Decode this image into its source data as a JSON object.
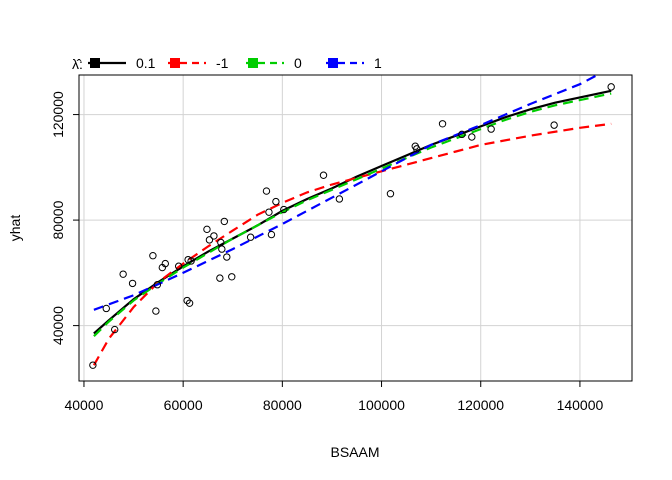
{
  "chart_data": {
    "type": "scatter",
    "xlabel": "BSAAM",
    "ylabel": "yhat",
    "xlim": [
      39000,
      150500
    ],
    "ylim": [
      19000,
      135000
    ],
    "x_ticks": [
      40000,
      60000,
      80000,
      100000,
      120000,
      140000
    ],
    "x_tick_labels": [
      "40000",
      "60000",
      "80000",
      "100000",
      "120000",
      "140000"
    ],
    "y_ticks": [
      40000,
      80000,
      120000
    ],
    "y_tick_labels": [
      "40000",
      "80000",
      "120000"
    ],
    "grid": true,
    "legend_placement": "top-left",
    "legend_title": "λ̂:",
    "points": {
      "x": [
        41800,
        44500,
        46200,
        47900,
        49800,
        53900,
        54500,
        54800,
        55800,
        56400,
        59100,
        60800,
        61000,
        61300,
        61600,
        64800,
        65300,
        66200,
        67400,
        67600,
        67800,
        68300,
        68800,
        69800,
        73600,
        76800,
        77300,
        77800,
        78700,
        80300,
        88300,
        91500,
        101800,
        106800,
        107100,
        112300,
        116200,
        118200,
        122100,
        134800,
        146300
      ],
      "y": [
        25000,
        46500,
        38500,
        59500,
        56000,
        66500,
        45500,
        55500,
        62000,
        63500,
        62500,
        49500,
        65000,
        48500,
        64500,
        76500,
        72500,
        74000,
        58000,
        71500,
        69000,
        79500,
        66000,
        58500,
        73500,
        91000,
        83000,
        74500,
        87000,
        84000,
        97000,
        88000,
        90000,
        108000,
        107000,
        116500,
        112500,
        111500,
        114500,
        116000,
        130500
      ]
    },
    "series": [
      {
        "name": "0.1",
        "color": "#000000",
        "dash": "solid",
        "x": [
          42000,
          45000,
          50000,
          55000,
          60000,
          65000,
          70000,
          75000,
          80000,
          85000,
          90000,
          95000,
          100000,
          105000,
          110000,
          115000,
          120000,
          125000,
          130000,
          135000,
          140000,
          146300
        ],
        "y": [
          37000,
          42000,
          50000,
          56500,
          62500,
          68000,
          73000,
          78000,
          83500,
          88000,
          92000,
          96500,
          100500,
          104500,
          108500,
          112000,
          115500,
          119000,
          122000,
          124500,
          126500,
          129000
        ]
      },
      {
        "name": "-1",
        "color": "#ff0000",
        "dash": "dashed",
        "x": [
          42000,
          45000,
          50000,
          55000,
          60000,
          65000,
          70000,
          75000,
          80000,
          85000,
          90000,
          95000,
          100000,
          105000,
          110000,
          115000,
          120000,
          130000,
          140000,
          146300
        ],
        "y": [
          25000,
          35000,
          47000,
          56500,
          63500,
          70000,
          76000,
          82000,
          86500,
          90500,
          93500,
          96000,
          98500,
          101000,
          103500,
          106000,
          108500,
          112000,
          115000,
          116500
        ]
      },
      {
        "name": "0",
        "color": "#00cd00",
        "dash": "dashed",
        "x": [
          42000,
          45000,
          50000,
          55000,
          60000,
          65000,
          70000,
          75000,
          80000,
          85000,
          90000,
          95000,
          100000,
          105000,
          110000,
          115000,
          120000,
          125000,
          130000,
          135000,
          140000,
          146300
        ],
        "y": [
          36000,
          41500,
          49500,
          56000,
          62000,
          67500,
          73000,
          78000,
          83000,
          87500,
          91500,
          95500,
          99500,
          103500,
          107500,
          111000,
          114500,
          118000,
          121000,
          123500,
          125500,
          128000
        ]
      },
      {
        "name": "1",
        "color": "#0000ff",
        "dash": "dashed",
        "x": [
          42000,
          50000,
          60000,
          70000,
          80000,
          90000,
          100000,
          110000,
          120000,
          130000,
          140000,
          143500
        ],
        "y": [
          46000,
          51500,
          60000,
          69000,
          78500,
          88500,
          98500,
          108500,
          116000,
          124000,
          131500,
          135000
        ]
      }
    ]
  }
}
